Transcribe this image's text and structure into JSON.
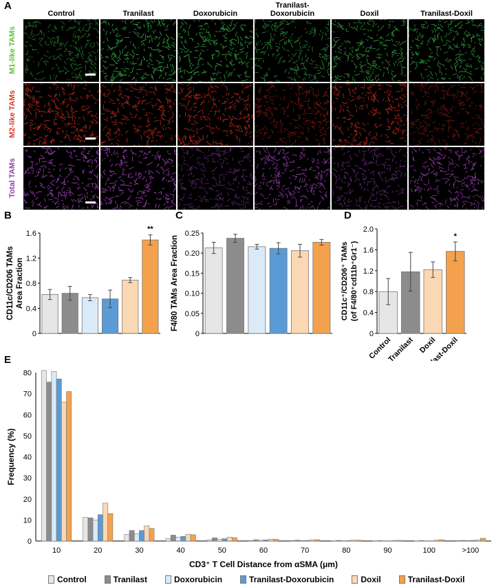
{
  "panel_labels": {
    "a": "A",
    "b": "B",
    "c": "C",
    "d": "D",
    "e": "E"
  },
  "panel_a": {
    "columns": [
      "Control",
      "Tranilast",
      "Doxorubicin",
      "Tranilast-\nDoxorubicin",
      "Doxil",
      "Tranilast-Doxil"
    ],
    "rows": [
      {
        "label_main": "M1-like",
        "label_suffix": " TAMs",
        "color": "#5fbf3a",
        "stain": "#3cc84a"
      },
      {
        "label_main": "M2-like",
        "label_suffix": " TAMs",
        "color": "#d83a2a",
        "stain": "#e0301e"
      },
      {
        "label_main": "Total",
        "label_suffix": " TAMs",
        "color": "#8a3fa8",
        "stain": "#b44ad0"
      }
    ]
  },
  "colors": {
    "Control": "#e6e6e6",
    "Tranilast": "#8c8c8c",
    "Doxorubicin": "#dbeaf8",
    "Tranilast-Doxorubicin": "#5b9bd5",
    "Doxil": "#fbd8b4",
    "Tranilast-Doxil": "#f4a14e"
  },
  "chart_data": [
    {
      "id": "B",
      "type": "bar",
      "categories": [
        "Control",
        "Tranilast",
        "Doxorubicin",
        "Tranilast-Doxorubicin",
        "Doxil",
        "Tranilast-Doxil"
      ],
      "values": [
        0.62,
        0.64,
        0.57,
        0.55,
        0.85,
        1.49
      ],
      "errors": [
        0.08,
        0.11,
        0.05,
        0.14,
        0.04,
        0.08
      ],
      "annotations": [
        "",
        "",
        "",
        "",
        "",
        "**"
      ],
      "ylabel": "CD11c/CD206 TAMs\nArea Fraction",
      "ylim": [
        0,
        1.6
      ],
      "yticks": [
        "0",
        "0.4",
        "0.8",
        "1.2",
        "1.6"
      ]
    },
    {
      "id": "C",
      "type": "bar",
      "categories": [
        "Control",
        "Tranilast",
        "Doxorubicin",
        "Tranilast-Doxorubicin",
        "Doxil",
        "Tranilast-Doxil"
      ],
      "values": [
        0.213,
        0.237,
        0.216,
        0.212,
        0.206,
        0.227
      ],
      "errors": [
        0.014,
        0.01,
        0.006,
        0.014,
        0.016,
        0.007
      ],
      "ylabel": "F4/80 TAMs Area Fraction",
      "ylim": [
        0,
        0.25
      ],
      "yticks": [
        "0",
        "0.05",
        "0.10",
        "0.15",
        "0.20",
        "0.25"
      ]
    },
    {
      "id": "D",
      "type": "bar",
      "categories": [
        "Control",
        "Tranilast",
        "Doxil",
        "Tranilast-Doxil"
      ],
      "values": [
        0.8,
        1.18,
        1.22,
        1.57
      ],
      "errors": [
        0.25,
        0.37,
        0.15,
        0.18
      ],
      "annotations": [
        "",
        "",
        "",
        "*"
      ],
      "ylabel_main": "CD11c⁺/CD206⁺ TAMs",
      "ylabel_sub": "(of  F4/80⁺cd11b⁺Gr1⁻)",
      "ylim": [
        0,
        2.0
      ],
      "yticks": [
        "0",
        "0.4",
        "0.8",
        "1.2",
        "1.6",
        "2.0"
      ]
    },
    {
      "id": "E",
      "type": "bar",
      "categories": [
        "10",
        "20",
        "30",
        "40",
        "50",
        "60",
        "70",
        "80",
        "90",
        "100",
        ">100"
      ],
      "series": [
        {
          "name": "Control",
          "values": [
            81,
            11.2,
            3.2,
            1.2,
            0.6,
            0.3,
            0.2,
            0.1,
            0.1,
            0.1,
            0.2
          ]
        },
        {
          "name": "Tranilast",
          "values": [
            75.5,
            11,
            5,
            2.8,
            1.5,
            0.6,
            0.4,
            0.3,
            0.2,
            0.2,
            0.3
          ]
        },
        {
          "name": "Doxorubicin",
          "values": [
            80.5,
            10,
            3.5,
            1.8,
            0.9,
            0.4,
            0.2,
            0.1,
            0.1,
            0.1,
            0.2
          ]
        },
        {
          "name": "Tranilast-Doxorubicin",
          "values": [
            77,
            12.5,
            5,
            2.2,
            1.1,
            0.5,
            0.3,
            0.2,
            0.1,
            0.1,
            0.3
          ]
        },
        {
          "name": "Doxil",
          "values": [
            66,
            18,
            7.2,
            3.2,
            1.8,
            0.9,
            0.6,
            0.4,
            0.3,
            0.4,
            0.5
          ]
        },
        {
          "name": "Tranilast-Doxil",
          "values": [
            71,
            13,
            6,
            3,
            1.6,
            0.8,
            0.6,
            0.4,
            0.3,
            0.6,
            1.3
          ]
        }
      ],
      "xlabel": "CD3⁺ T Cell Distance from αSMA (μm)",
      "ylabel": "Frequency (%)",
      "ylim": [
        0,
        80
      ],
      "yticks": [
        "0",
        "10",
        "20",
        "30",
        "40",
        "50",
        "60",
        "70",
        "80"
      ]
    }
  ],
  "legend": [
    "Control",
    "Tranilast",
    "Doxorubicin",
    "Tranilast-Doxorubicin",
    "Doxil",
    "Tranilast-Doxil"
  ]
}
